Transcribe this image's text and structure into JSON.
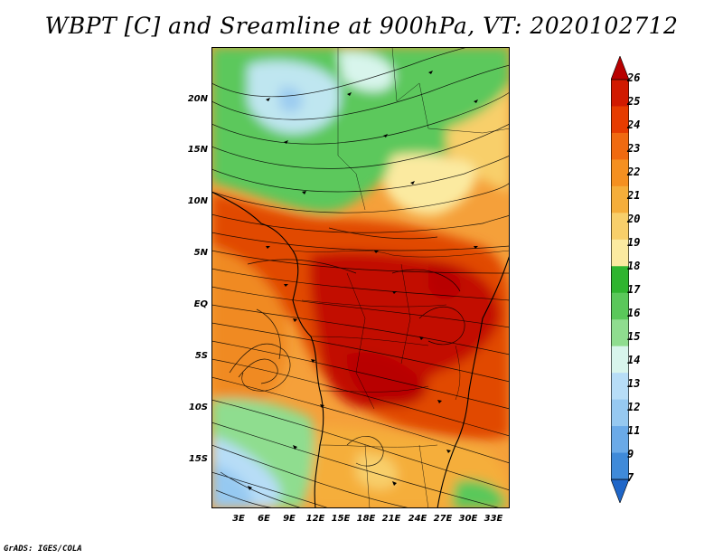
{
  "title": "WBPT [C] and Sreamline at 900hPa, VT: 2020102712",
  "credit": "GrADS: IGES/COLA",
  "axes": {
    "y_labels": [
      "20N",
      "15N",
      "10N",
      "5N",
      "EQ",
      "5S",
      "10S",
      "15S"
    ],
    "x_labels": [
      "3E",
      "6E",
      "9E",
      "12E",
      "15E",
      "18E",
      "21E",
      "24E",
      "27E",
      "30E",
      "33E"
    ]
  },
  "colorbar": {
    "labels": [
      "26",
      "25",
      "24",
      "23",
      "22",
      "21",
      "20",
      "19",
      "18",
      "17",
      "16",
      "15",
      "14",
      "13",
      "12",
      "11",
      "9",
      "7"
    ],
    "colors": [
      "#b80000",
      "#d11a00",
      "#e63c00",
      "#f06a10",
      "#f59020",
      "#f5ae3a",
      "#f8cf6a",
      "#fbeaa0",
      "#2fb52f",
      "#5ac85a",
      "#8fdd8f",
      "#d8f5ec",
      "#b7ddf7",
      "#96c9f1",
      "#6aaae8",
      "#3f8ad9",
      "#1f66c8"
    ]
  }
}
